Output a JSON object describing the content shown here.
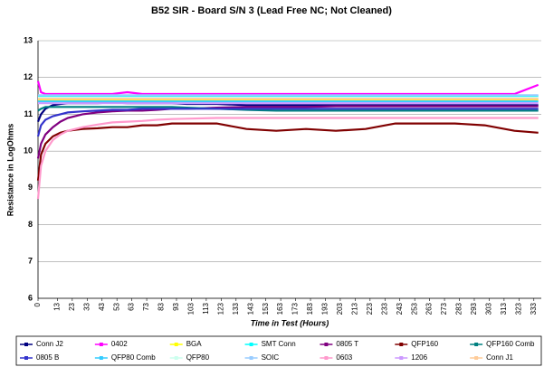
{
  "chart_data": {
    "type": "line",
    "title": "B52 SIR - Board S/N 3 (Lead Free NC; Not Cleaned)",
    "x_label": "Time in Test (Hours)",
    "y_label": "Resistance in LogOhms",
    "x": [
      0,
      2,
      5,
      10,
      15,
      20,
      30,
      40,
      50,
      60,
      70,
      80,
      90,
      100,
      120,
      140,
      160,
      180,
      200,
      220,
      240,
      260,
      280,
      300,
      320,
      336
    ],
    "xlim": [
      0,
      338
    ],
    "xticks": [
      0,
      13,
      23,
      33,
      43,
      53,
      63,
      73,
      83,
      93,
      103,
      113,
      123,
      133,
      143,
      153,
      163,
      173,
      183,
      193,
      203,
      213,
      223,
      233,
      243,
      253,
      263,
      273,
      283,
      293,
      303,
      313,
      323,
      333
    ],
    "ylim": [
      6,
      13
    ],
    "yticks": [
      6,
      7,
      8,
      9,
      10,
      11,
      12,
      13
    ],
    "grid": true,
    "legend": "bottom",
    "series": [
      {
        "name": "Conn J2",
        "color": "#000080",
        "values": [
          10.8,
          11.0,
          11.15,
          11.25,
          11.28,
          11.3,
          11.3,
          11.3,
          11.32,
          11.3,
          11.3,
          11.3,
          11.3,
          11.28,
          11.28,
          11.25,
          11.25,
          11.25,
          11.25,
          11.25,
          11.25,
          11.25,
          11.25,
          11.25,
          11.25,
          11.25
        ]
      },
      {
        "name": "0402",
        "color": "#ff00ff",
        "values": [
          11.9,
          11.6,
          11.55,
          11.55,
          11.55,
          11.55,
          11.55,
          11.55,
          11.55,
          11.6,
          11.55,
          11.55,
          11.55,
          11.55,
          11.55,
          11.55,
          11.55,
          11.55,
          11.55,
          11.55,
          11.55,
          11.55,
          11.55,
          11.55,
          11.55,
          11.8
        ]
      },
      {
        "name": "BGA",
        "color": "#ffff00",
        "values": [
          11.4,
          11.4,
          11.4,
          11.4,
          11.4,
          11.4,
          11.4,
          11.4,
          11.4,
          11.4,
          11.4,
          11.4,
          11.4,
          11.4,
          11.4,
          11.4,
          11.4,
          11.4,
          11.4,
          11.4,
          11.4,
          11.4,
          11.4,
          11.4,
          11.4,
          11.4
        ]
      },
      {
        "name": "SMT Conn",
        "color": "#00ffff",
        "values": [
          11.5,
          11.5,
          11.5,
          11.5,
          11.5,
          11.5,
          11.5,
          11.5,
          11.5,
          11.5,
          11.5,
          11.5,
          11.5,
          11.5,
          11.5,
          11.5,
          11.5,
          11.5,
          11.5,
          11.5,
          11.5,
          11.5,
          11.5,
          11.5,
          11.5,
          11.5
        ]
      },
      {
        "name": "0805 T",
        "color": "#800080",
        "values": [
          9.8,
          10.2,
          10.45,
          10.65,
          10.8,
          10.9,
          11.0,
          11.05,
          11.08,
          11.1,
          11.1,
          11.12,
          11.15,
          11.15,
          11.18,
          11.2,
          11.2,
          11.2,
          11.22,
          11.22,
          11.22,
          11.22,
          11.22,
          11.22,
          11.22,
          11.22
        ]
      },
      {
        "name": "QFP160",
        "color": "#800000",
        "values": [
          9.2,
          9.9,
          10.2,
          10.4,
          10.5,
          10.55,
          10.6,
          10.62,
          10.65,
          10.65,
          10.7,
          10.7,
          10.75,
          10.75,
          10.75,
          10.6,
          10.55,
          10.6,
          10.55,
          10.6,
          10.75,
          10.75,
          10.75,
          10.7,
          10.55,
          10.5
        ]
      },
      {
        "name": "QFP160 Comb",
        "color": "#008080",
        "values": [
          11.1,
          11.15,
          11.2,
          11.2,
          11.2,
          11.2,
          11.2,
          11.2,
          11.2,
          11.2,
          11.2,
          11.2,
          11.2,
          11.18,
          11.15,
          11.12,
          11.1,
          11.1,
          11.1,
          11.1,
          11.1,
          11.1,
          11.1,
          11.1,
          11.1,
          11.1
        ]
      },
      {
        "name": "0805 B",
        "color": "#3333cc",
        "values": [
          10.4,
          10.7,
          10.85,
          10.95,
          11.0,
          11.05,
          11.08,
          11.1,
          11.12,
          11.12,
          11.15,
          11.15,
          11.15,
          11.15,
          11.15,
          11.15,
          11.15,
          11.15,
          11.15,
          11.15,
          11.15,
          11.15,
          11.15,
          11.15,
          11.15,
          11.15
        ]
      },
      {
        "name": "QFP80 Comb",
        "color": "#33ccff",
        "values": [
          11.35,
          11.35,
          11.35,
          11.35,
          11.35,
          11.35,
          11.35,
          11.35,
          11.35,
          11.35,
          11.35,
          11.35,
          11.35,
          11.35,
          11.35,
          11.35,
          11.35,
          11.35,
          11.35,
          11.35,
          11.35,
          11.35,
          11.35,
          11.35,
          11.35,
          11.35
        ]
      },
      {
        "name": "QFP80",
        "color": "#ccffee",
        "values": [
          11.45,
          11.45,
          11.45,
          11.45,
          11.45,
          11.45,
          11.45,
          11.45,
          11.45,
          11.45,
          11.45,
          11.45,
          11.45,
          11.45,
          11.45,
          11.45,
          11.45,
          11.45,
          11.45,
          11.45,
          11.45,
          11.45,
          11.45,
          11.45,
          11.45,
          11.45
        ]
      },
      {
        "name": "SOIC",
        "color": "#99ccff",
        "values": [
          11.52,
          11.52,
          11.52,
          11.52,
          11.52,
          11.52,
          11.52,
          11.52,
          11.52,
          11.52,
          11.52,
          11.52,
          11.52,
          11.52,
          11.52,
          11.52,
          11.52,
          11.52,
          11.52,
          11.52,
          11.52,
          11.52,
          11.52,
          11.52,
          11.52,
          11.52
        ]
      },
      {
        "name": "0603",
        "color": "#ff99cc",
        "values": [
          8.7,
          9.6,
          10.0,
          10.3,
          10.45,
          10.55,
          10.65,
          10.72,
          10.78,
          10.8,
          10.82,
          10.85,
          10.87,
          10.88,
          10.9,
          10.9,
          10.9,
          10.9,
          10.9,
          10.9,
          10.9,
          10.9,
          10.9,
          10.9,
          10.9,
          10.9
        ]
      },
      {
        "name": "1206",
        "color": "#cc99ff",
        "values": [
          11.3,
          11.3,
          11.3,
          11.3,
          11.3,
          11.3,
          11.3,
          11.3,
          11.3,
          11.3,
          11.3,
          11.3,
          11.3,
          11.3,
          11.3,
          11.3,
          11.3,
          11.3,
          11.3,
          11.3,
          11.3,
          11.3,
          11.3,
          11.3,
          11.3,
          11.3
        ]
      },
      {
        "name": "Conn J1",
        "color": "#ffcc99",
        "values": [
          11.42,
          11.42,
          11.42,
          11.42,
          11.42,
          11.42,
          11.42,
          11.42,
          11.42,
          11.42,
          11.42,
          11.42,
          11.42,
          11.42,
          11.42,
          11.42,
          11.42,
          11.42,
          11.42,
          11.42,
          11.42,
          11.42,
          11.42,
          11.42,
          11.42,
          11.42
        ]
      }
    ]
  }
}
